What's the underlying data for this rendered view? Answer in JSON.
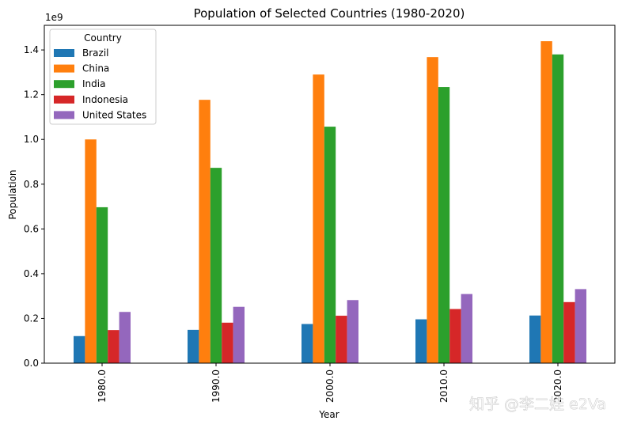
{
  "chart_data": {
    "type": "bar",
    "title": "Population of Selected Countries (1980-2020)",
    "xlabel": "Year",
    "ylabel": "Population",
    "y_offset_text": "1e9",
    "categories": [
      "1980.0",
      "1990.0",
      "2000.0",
      "2010.0",
      "2020.0"
    ],
    "ylim": [
      0,
      1.51
    ],
    "yticks": [
      0.0,
      0.2,
      0.4,
      0.6,
      0.8,
      1.0,
      1.2,
      1.4
    ],
    "ytick_labels": [
      "0.0",
      "0.2",
      "0.4",
      "0.6",
      "0.8",
      "1.0",
      "1.2",
      "1.4"
    ],
    "grid": false,
    "legend": {
      "title": "Country",
      "placement": "top-left"
    },
    "series": [
      {
        "name": "Brazil",
        "color": "#1f77b4",
        "values": [
          0.121,
          0.149,
          0.175,
          0.196,
          0.213
        ]
      },
      {
        "name": "China",
        "color": "#ff7f0e",
        "values": [
          1.0,
          1.177,
          1.29,
          1.368,
          1.439
        ]
      },
      {
        "name": "India",
        "color": "#2ca02c",
        "values": [
          0.697,
          0.873,
          1.057,
          1.234,
          1.38
        ]
      },
      {
        "name": "Indonesia",
        "color": "#d62728",
        "values": [
          0.148,
          0.181,
          0.212,
          0.242,
          0.273
        ]
      },
      {
        "name": "United States",
        "color": "#9467bd",
        "values": [
          0.229,
          0.252,
          0.282,
          0.309,
          0.331
        ]
      }
    ]
  },
  "watermark": {
    "text": "知乎 @李二娃 e2Va"
  }
}
